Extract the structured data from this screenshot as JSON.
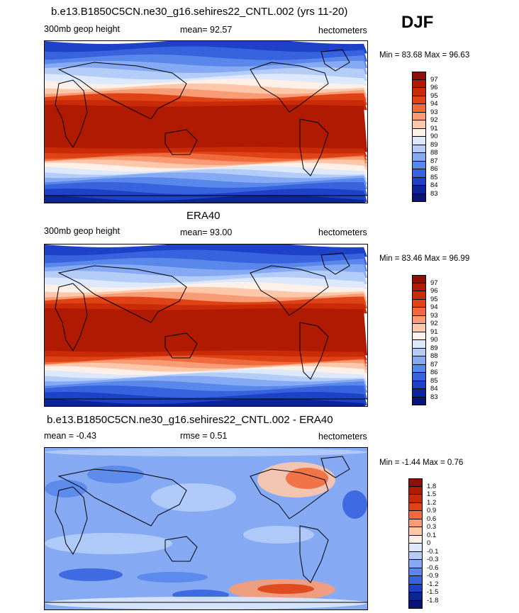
{
  "season": "DJF",
  "panels": [
    {
      "title": "b.e13.B1850C5CN.ne30_g16.sehires22_CNTL.002 (yrs 11-20)",
      "left_label": "300mb geop height",
      "center_label": "mean=  92.57",
      "right_label": "hectometers",
      "minmax": "Min =  83.68 Max =  96.63",
      "colorbar": {
        "labels": [
          "97",
          "96",
          "95",
          "94",
          "93",
          "92",
          "91",
          "90",
          "89",
          "88",
          "87",
          "86",
          "85",
          "84",
          "83"
        ],
        "colors": [
          "#8c1003",
          "#b01a03",
          "#c92a08",
          "#de4215",
          "#ef6a3d",
          "#f99b74",
          "#fdc8aa",
          "#fdf0e8",
          "#dde8fb",
          "#b4cdf8",
          "#85aaf3",
          "#5987ea",
          "#3763df",
          "#1d42c8",
          "#0d2496",
          "#0a1478"
        ]
      },
      "field_type": "model"
    },
    {
      "title": "ERA40",
      "left_label": "300mb geop height",
      "center_label": "mean=  93.00",
      "right_label": "hectometers",
      "minmax": "Min =  83.46 Max =  96.99",
      "colorbar": {
        "labels": [
          "97",
          "96",
          "95",
          "94",
          "93",
          "92",
          "91",
          "90",
          "89",
          "88",
          "87",
          "86",
          "85",
          "84",
          "83"
        ],
        "colors": [
          "#8c1003",
          "#b01a03",
          "#c92a08",
          "#de4215",
          "#ef6a3d",
          "#f99b74",
          "#fdc8aa",
          "#fdf0e8",
          "#dde8fb",
          "#b4cdf8",
          "#85aaf3",
          "#5987ea",
          "#3763df",
          "#1d42c8",
          "#0d2496",
          "#0a1478"
        ]
      },
      "field_type": "obs"
    },
    {
      "title": "b.e13.B1850C5CN.ne30_g16.sehires22_CNTL.002 - ERA40",
      "left_label": "mean =  -0.43",
      "center_label": "rmse =   0.51",
      "right_label": "hectometers",
      "minmax": "Min =  -1.44 Max =   0.76",
      "colorbar": {
        "labels": [
          "1.8",
          "1.5",
          "1.2",
          "0.9",
          "0.6",
          "0.3",
          "0.1",
          "0",
          "-0.1",
          "-0.3",
          "-0.6",
          "-0.9",
          "-1.2",
          "-1.5",
          "-1.8"
        ],
        "colors": [
          "#8c1003",
          "#b01a03",
          "#c92a08",
          "#de4215",
          "#ef6a3d",
          "#f99b74",
          "#fdc8aa",
          "#fdf0e8",
          "#dde8fb",
          "#b4cdf8",
          "#85aaf3",
          "#5987ea",
          "#3763df",
          "#1d42c8",
          "#0d2496",
          "#0a1478"
        ]
      },
      "field_type": "diff"
    }
  ],
  "chart_data": [
    {
      "type": "heatmap",
      "title": "b.e13.B1850C5CN.ne30_g16.sehires22_CNTL.002 (yrs 11-20)",
      "variable": "300mb geop height",
      "units": "hectometers",
      "mean": 92.57,
      "min": 83.68,
      "max": 96.63,
      "levels": [
        83,
        84,
        85,
        86,
        87,
        88,
        89,
        90,
        91,
        92,
        93,
        94,
        95,
        96,
        97
      ]
    },
    {
      "type": "heatmap",
      "title": "ERA40",
      "variable": "300mb geop height",
      "units": "hectometers",
      "mean": 93.0,
      "min": 83.46,
      "max": 96.99,
      "levels": [
        83,
        84,
        85,
        86,
        87,
        88,
        89,
        90,
        91,
        92,
        93,
        94,
        95,
        96,
        97
      ]
    },
    {
      "type": "heatmap",
      "title": "b.e13.B1850C5CN.ne30_g16.sehires22_CNTL.002 - ERA40",
      "units": "hectometers",
      "mean": -0.43,
      "rmse": 0.51,
      "min": -1.44,
      "max": 0.76,
      "levels": [
        -1.8,
        -1.5,
        -1.2,
        -0.9,
        -0.6,
        -0.3,
        -0.1,
        0,
        0.1,
        0.3,
        0.6,
        0.9,
        1.2,
        1.5,
        1.8
      ]
    }
  ]
}
